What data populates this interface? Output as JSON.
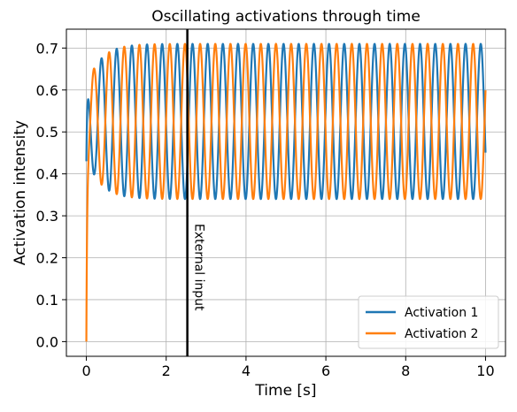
{
  "chart_data": {
    "type": "line",
    "title": "Oscillating activations through time",
    "xlabel": "Time [s]",
    "ylabel": "Activation intensity",
    "xlim": [
      -0.5,
      10.5
    ],
    "ylim": [
      -0.035,
      0.745
    ],
    "xticks": [
      0,
      2,
      4,
      6,
      8,
      10
    ],
    "xtick_labels": [
      "0",
      "2",
      "4",
      "6",
      "8",
      "10"
    ],
    "yticks": [
      0.0,
      0.1,
      0.2,
      0.3,
      0.4,
      0.5,
      0.6,
      0.7
    ],
    "ytick_labels": [
      "0.0",
      "0.1",
      "0.2",
      "0.3",
      "0.4",
      "0.5",
      "0.6",
      "0.7"
    ],
    "grid": true,
    "legend_position": "lower-right",
    "series": [
      {
        "name": "Activation 1",
        "color": "#1f77b4",
        "description_values": {
          "t_start": 0.0,
          "y_start": 0.43,
          "steady_min": 0.34,
          "steady_max": 0.71,
          "period_s": 0.38,
          "phase_rad": 0.0
        }
      },
      {
        "name": "Activation 2",
        "color": "#ff7f0e",
        "description_values": {
          "t_start": 0.0,
          "y_start": 0.0,
          "steady_min": 0.34,
          "steady_max": 0.71,
          "period_s": 0.38,
          "phase_rad": 3.14159
        }
      }
    ],
    "annotations": [
      {
        "type": "vline",
        "x": 2.53,
        "color": "#000000",
        "label": "External input"
      }
    ]
  }
}
